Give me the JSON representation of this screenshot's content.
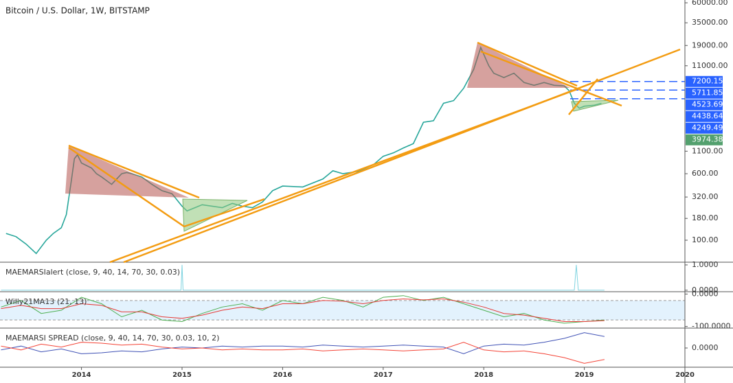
{
  "chart_data": [
    {
      "type": "line",
      "title": "Bitcoin / U.S. Dollar, 1W, BITSTAMP",
      "log": true,
      "xlim": [
        2013.19,
        2020.0
      ],
      "xticks": [
        2014,
        2015,
        2016,
        2017,
        2018,
        2019,
        2020
      ],
      "ylim": [
        55.3,
        64700
      ],
      "yticks": [
        {
          "value": 60000,
          "label": "60000.00"
        },
        {
          "value": 35000,
          "label": "35000.00"
        },
        {
          "value": 19000,
          "label": "19000.00"
        },
        {
          "value": 11000,
          "label": "11000.00"
        },
        {
          "value": 1100,
          "label": "1100.00"
        },
        {
          "value": 600,
          "label": "600.00"
        },
        {
          "value": 320,
          "label": "320.00"
        },
        {
          "value": 180,
          "label": "180.00"
        },
        {
          "value": 100,
          "label": "100.00"
        }
      ],
      "x": [
        2013.25,
        2013.35,
        2013.45,
        2013.55,
        2013.65,
        2013.72,
        2013.8,
        2013.85,
        2013.9,
        2013.93,
        2013.96,
        2014.0,
        2014.1,
        2014.15,
        2014.2,
        2014.3,
        2014.4,
        2014.45,
        2014.5,
        2014.6,
        2014.7,
        2014.8,
        2014.9,
        2015.0,
        2015.05,
        2015.2,
        2015.4,
        2015.5,
        2015.6,
        2015.7,
        2015.8,
        2015.9,
        2016.0,
        2016.2,
        2016.4,
        2016.5,
        2016.6,
        2016.75,
        2016.9,
        2017.0,
        2017.1,
        2017.2,
        2017.3,
        2017.4,
        2017.5,
        2017.6,
        2017.7,
        2017.8,
        2017.9,
        2017.97,
        2018.05,
        2018.1,
        2018.2,
        2018.3,
        2018.4,
        2018.5,
        2018.6,
        2018.7,
        2018.8,
        2018.85,
        2018.9,
        2018.95,
        2019.0,
        2019.1,
        2019.17
      ],
      "series": [
        {
          "color": "#26a69a",
          "values": [
            120,
            110,
            90,
            70,
            100,
            120,
            140,
            200,
            500,
            900,
            1000,
            800,
            700,
            600,
            550,
            450,
            600,
            620,
            600,
            550,
            450,
            380,
            350,
            250,
            220,
            260,
            240,
            270,
            250,
            240,
            280,
            380,
            430,
            420,
            520,
            650,
            600,
            640,
            760,
            960,
            1050,
            1200,
            1350,
            2400,
            2500,
            4000,
            4300,
            6000,
            10000,
            18000,
            11000,
            9000,
            8000,
            9000,
            7000,
            6500,
            7000,
            6500,
            6400,
            5600,
            4000,
            3500,
            3700,
            3800,
            4000
          ]
        }
      ],
      "price_levels": [
        7200.15,
        5711.85,
        4523.69,
        4438.64,
        4249.49,
        3974.38
      ],
      "price_level_colors": [
        "#2962ff",
        "#2962ff",
        "#2962ff",
        "#2962ff",
        "#2962ff",
        "#53a06e"
      ]
    },
    {
      "type": "line",
      "title": "MAEMARSIalert (close, 9, 40, 14, 70, 30, 0.03)",
      "xlim": [
        2013.19,
        2020.0
      ],
      "ylim": [
        -0.06,
        1.08
      ],
      "yticks": [
        {
          "value": 1,
          "label": "1.0000"
        },
        {
          "value": 0,
          "label": "0.0000"
        }
      ],
      "x": [
        2013.2,
        2014.99,
        2015.0,
        2015.01,
        2018.9,
        2018.92,
        2018.94,
        2019.2
      ],
      "series": [
        {
          "color": "#7fd3e0",
          "values": [
            0,
            0,
            1,
            0,
            0,
            1,
            0,
            0
          ]
        }
      ]
    },
    {
      "type": "line",
      "title": "Willy21MA13 (21, 13)",
      "xlim": [
        2013.19,
        2020.0
      ],
      "ylim": [
        -105,
        5
      ],
      "band": [
        -20,
        -80
      ],
      "yticks": [
        {
          "value": 0,
          "label": "0.0000"
        },
        {
          "value": -100,
          "label": "-100.0000"
        }
      ],
      "x": [
        2013.2,
        2013.4,
        2013.6,
        2013.8,
        2014.0,
        2014.2,
        2014.4,
        2014.6,
        2014.8,
        2015.0,
        2015.2,
        2015.4,
        2015.6,
        2015.8,
        2016.0,
        2016.2,
        2016.4,
        2016.6,
        2016.8,
        2017.0,
        2017.2,
        2017.4,
        2017.6,
        2017.8,
        2018.0,
        2018.2,
        2018.4,
        2018.6,
        2018.8,
        2019.0,
        2019.2
      ],
      "series": [
        {
          "color": "#4caf50",
          "values": [
            -40,
            -20,
            -60,
            -50,
            -10,
            -30,
            -70,
            -50,
            -80,
            -85,
            -60,
            -40,
            -30,
            -50,
            -20,
            -30,
            -10,
            -20,
            -40,
            -10,
            -5,
            -20,
            -10,
            -30,
            -50,
            -70,
            -60,
            -80,
            -90,
            -85,
            -80
          ]
        },
        {
          "color": "#e53935",
          "values": [
            -45,
            -35,
            -45,
            -45,
            -30,
            -35,
            -55,
            -55,
            -70,
            -75,
            -65,
            -50,
            -40,
            -45,
            -30,
            -30,
            -20,
            -22,
            -30,
            -20,
            -15,
            -18,
            -15,
            -25,
            -40,
            -60,
            -65,
            -75,
            -85,
            -85,
            -82
          ]
        }
      ]
    },
    {
      "type": "line",
      "title": "MAEMARSI SPREAD (close, 9, 40, 14, 70, 30, 0.03, 10, 2)",
      "xlim": [
        2013.19,
        2020.0
      ],
      "ylim": [
        -1,
        1
      ],
      "yticks": [
        {
          "value": 0,
          "label": "0.0000"
        }
      ],
      "x": [
        2013.2,
        2013.4,
        2013.6,
        2013.8,
        2014.0,
        2014.2,
        2014.4,
        2014.6,
        2014.8,
        2015.0,
        2015.2,
        2015.4,
        2015.6,
        2015.8,
        2016.0,
        2016.2,
        2016.4,
        2016.6,
        2016.8,
        2017.0,
        2017.2,
        2017.4,
        2017.6,
        2017.8,
        2018.0,
        2018.2,
        2018.4,
        2018.6,
        2018.8,
        2019.0,
        2019.2
      ],
      "series": [
        {
          "color": "#3f51b5",
          "values": [
            -0.1,
            0.1,
            -0.2,
            -0.05,
            -0.3,
            -0.25,
            -0.15,
            -0.2,
            -0.05,
            0.05,
            0,
            0.1,
            0.05,
            0.1,
            0.1,
            0.05,
            0.15,
            0.1,
            0.05,
            0.1,
            0.15,
            0.1,
            0.05,
            -0.3,
            0.1,
            0.2,
            0.15,
            0.3,
            0.5,
            0.8,
            0.6
          ]
        },
        {
          "color": "#f44336",
          "values": [
            0.1,
            -0.1,
            0.2,
            0.05,
            0.3,
            0.25,
            0.15,
            0.2,
            0.05,
            -0.05,
            0,
            -0.1,
            -0.05,
            -0.1,
            -0.1,
            -0.05,
            -0.15,
            -0.1,
            -0.05,
            -0.1,
            -0.15,
            -0.1,
            -0.05,
            0.3,
            -0.1,
            -0.2,
            -0.15,
            -0.3,
            -0.5,
            -0.8,
            -0.6
          ]
        }
      ]
    }
  ]
}
